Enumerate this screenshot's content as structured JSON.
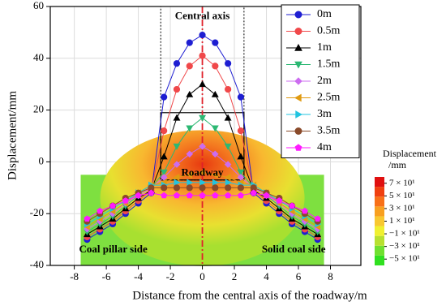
{
  "chart_data": {
    "type": "line",
    "x_label": "Distance from the central axis of the roadway/m",
    "y_label": "Displacement/mm",
    "annotations": [
      "Central axis",
      "Roadway",
      "Coal pillar side",
      "Solid coal side"
    ],
    "x": [
      -7.2,
      -6.4,
      -5.6,
      -4.8,
      -4.0,
      -3.2,
      -2.4,
      -1.6,
      -0.8,
      0,
      0.8,
      1.6,
      2.4,
      3.2,
      4.0,
      4.8,
      5.6,
      6.4,
      7.2
    ],
    "xlim": [
      -9.5,
      9.9
    ],
    "xticks": [
      -8,
      -6,
      -4,
      -2,
      0,
      2,
      4,
      6,
      8
    ],
    "ylim": [
      -40,
      60
    ],
    "yticks": [
      -40,
      -20,
      0,
      20,
      40,
      60
    ],
    "grid": true,
    "legend": "upper right",
    "series": [
      {
        "name": "0m",
        "color": "#1e1ed2",
        "marker": "circle",
        "values": [
          -30,
          -27,
          -24,
          -20,
          -16,
          -12,
          25,
          38,
          46,
          49,
          46,
          38,
          25,
          -12,
          -16,
          -20,
          -24,
          -27,
          -30
        ]
      },
      {
        "name": "0.5m",
        "color": "#f0484a",
        "marker": "circle",
        "values": [
          -29,
          -26,
          -23,
          -19,
          -15,
          -11,
          12,
          28,
          37,
          41,
          37,
          28,
          12,
          -11,
          -15,
          -19,
          -23,
          -26,
          -29
        ]
      },
      {
        "name": "1m",
        "color": "#000000",
        "marker": "triangle-up",
        "values": [
          -28,
          -25,
          -22,
          -18,
          -14,
          -11,
          2,
          17,
          26,
          30,
          26,
          17,
          2,
          -11,
          -14,
          -18,
          -22,
          -25,
          -28
        ]
      },
      {
        "name": "1.5m",
        "color": "#2cb873",
        "marker": "triangle-down",
        "values": [
          -27,
          -24,
          -21,
          -17,
          -13,
          -10,
          -4,
          6,
          13,
          17,
          13,
          6,
          -4,
          -10,
          -13,
          -17,
          -21,
          -24,
          -27
        ]
      },
      {
        "name": "2m",
        "color": "#cc6cf0",
        "marker": "diamond",
        "values": [
          -26,
          -23,
          -20,
          -16,
          -13,
          -10,
          -6,
          -1,
          3,
          6,
          3,
          -1,
          -6,
          -10,
          -13,
          -16,
          -20,
          -23,
          -26
        ]
      },
      {
        "name": "2.5m",
        "color": "#e09a10",
        "marker": "triangle-left",
        "values": [
          -25,
          -22,
          -19,
          -16,
          -12,
          -9,
          -8,
          -6,
          -5,
          -4,
          -5,
          -6,
          -8,
          -9,
          -12,
          -16,
          -19,
          -22,
          -25
        ]
      },
      {
        "name": "3m",
        "color": "#22c4e0",
        "marker": "triangle-right",
        "values": [
          -24,
          -21,
          -18,
          -15,
          -12,
          -9,
          -9,
          -8,
          -8,
          -8,
          -8,
          -8,
          -9,
          -9,
          -12,
          -15,
          -18,
          -21,
          -24
        ]
      },
      {
        "name": "3.5m",
        "color": "#8a4a2a",
        "marker": "circle",
        "values": [
          -23,
          -20,
          -17,
          -14,
          -12,
          -10,
          -10,
          -10,
          -10,
          -10,
          -10,
          -10,
          -10,
          -10,
          -12,
          -14,
          -17,
          -20,
          -23
        ]
      },
      {
        "name": "4m",
        "color": "#ff1aff",
        "marker": "pentagon",
        "values": [
          -22,
          -19,
          -17,
          -15,
          -13,
          -12,
          -13,
          -13,
          -13,
          -13,
          -13,
          -13,
          -13,
          -12,
          -13,
          -15,
          -17,
          -19,
          -22
        ]
      }
    ],
    "colorbar": {
      "title": [
        "Displacement",
        "/mm"
      ],
      "ticks": [
        {
          "value": 70,
          "label": "7 × 10¹"
        },
        {
          "value": 50,
          "label": "5 × 10¹"
        },
        {
          "value": 30,
          "label": "3 × 10¹"
        },
        {
          "value": 10,
          "label": "1 × 10¹"
        },
        {
          "value": -10,
          "label": "−1 × 10¹"
        },
        {
          "value": -30,
          "label": "−3 × 10¹"
        },
        {
          "value": -50,
          "label": "−5 × 10¹"
        }
      ],
      "lim": [
        -60,
        80
      ]
    }
  }
}
